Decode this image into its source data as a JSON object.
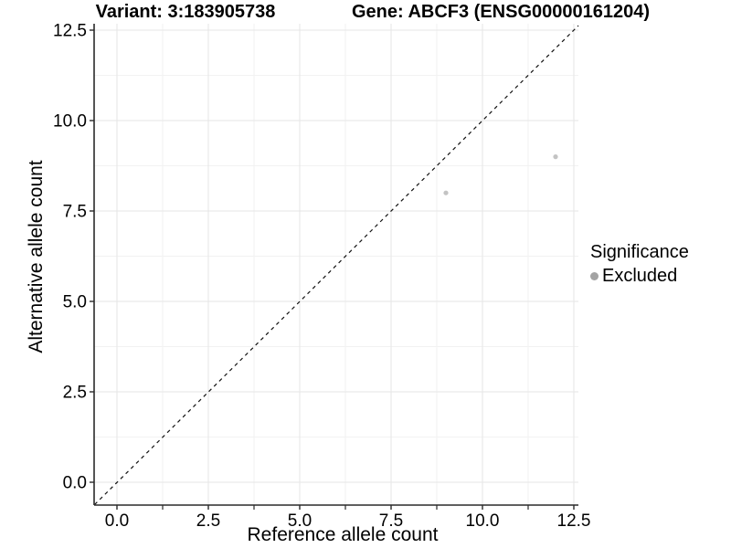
{
  "chart_data": {
    "type": "scatter",
    "title_left": "Variant: 3:183905738",
    "title_right": "Gene: ABCF3 (ENSG00000161204)",
    "xlabel": "Reference allele count",
    "ylabel": "Alternative allele count",
    "x_ticks": [
      0,
      2.5,
      5,
      7.5,
      10,
      12.5
    ],
    "y_ticks": [
      0,
      2.5,
      5,
      7.5,
      10,
      12.5
    ],
    "x_tick_labels": [
      "0.0",
      "2.5",
      "5.0",
      "7.5",
      "10.0",
      "12.5"
    ],
    "y_tick_labels": [
      "0.0",
      "2.5",
      "5.0",
      "7.5",
      "10.0",
      "12.5"
    ],
    "x_minor_ticks": [
      1.25,
      3.75,
      6.25,
      8.75,
      11.25
    ],
    "y_minor_gridlines": [
      1.25,
      3.75,
      6.25,
      8.75,
      11.25
    ],
    "x_range": [
      -0.625,
      12.625
    ],
    "y_range": [
      -0.63,
      12.68
    ],
    "grid": true,
    "legend_position": "right",
    "identity_line": {
      "equation": "y = x",
      "style": "dashed",
      "color": "#111111"
    },
    "series": [
      {
        "name": "Excluded",
        "point_color": "#c3c3c3",
        "points": [
          {
            "x": 9,
            "y": 8
          },
          {
            "x": 12,
            "y": 9
          }
        ]
      }
    ],
    "legend": {
      "title": "Significance",
      "items": [
        {
          "label": "Excluded",
          "color": "#a3a3a3"
        }
      ]
    }
  },
  "colors": {
    "background": "#ffffff",
    "axis_line": "#2a2a2a",
    "tick_mark": "#2a2a2a",
    "tick_label": "#000000",
    "grid_major": "#e6e6e6",
    "grid_minor": "#f2f2f2",
    "point_fill": "#c3c3c3",
    "legend_dot": "#a3a3a3",
    "diagonal": "#111111"
  }
}
